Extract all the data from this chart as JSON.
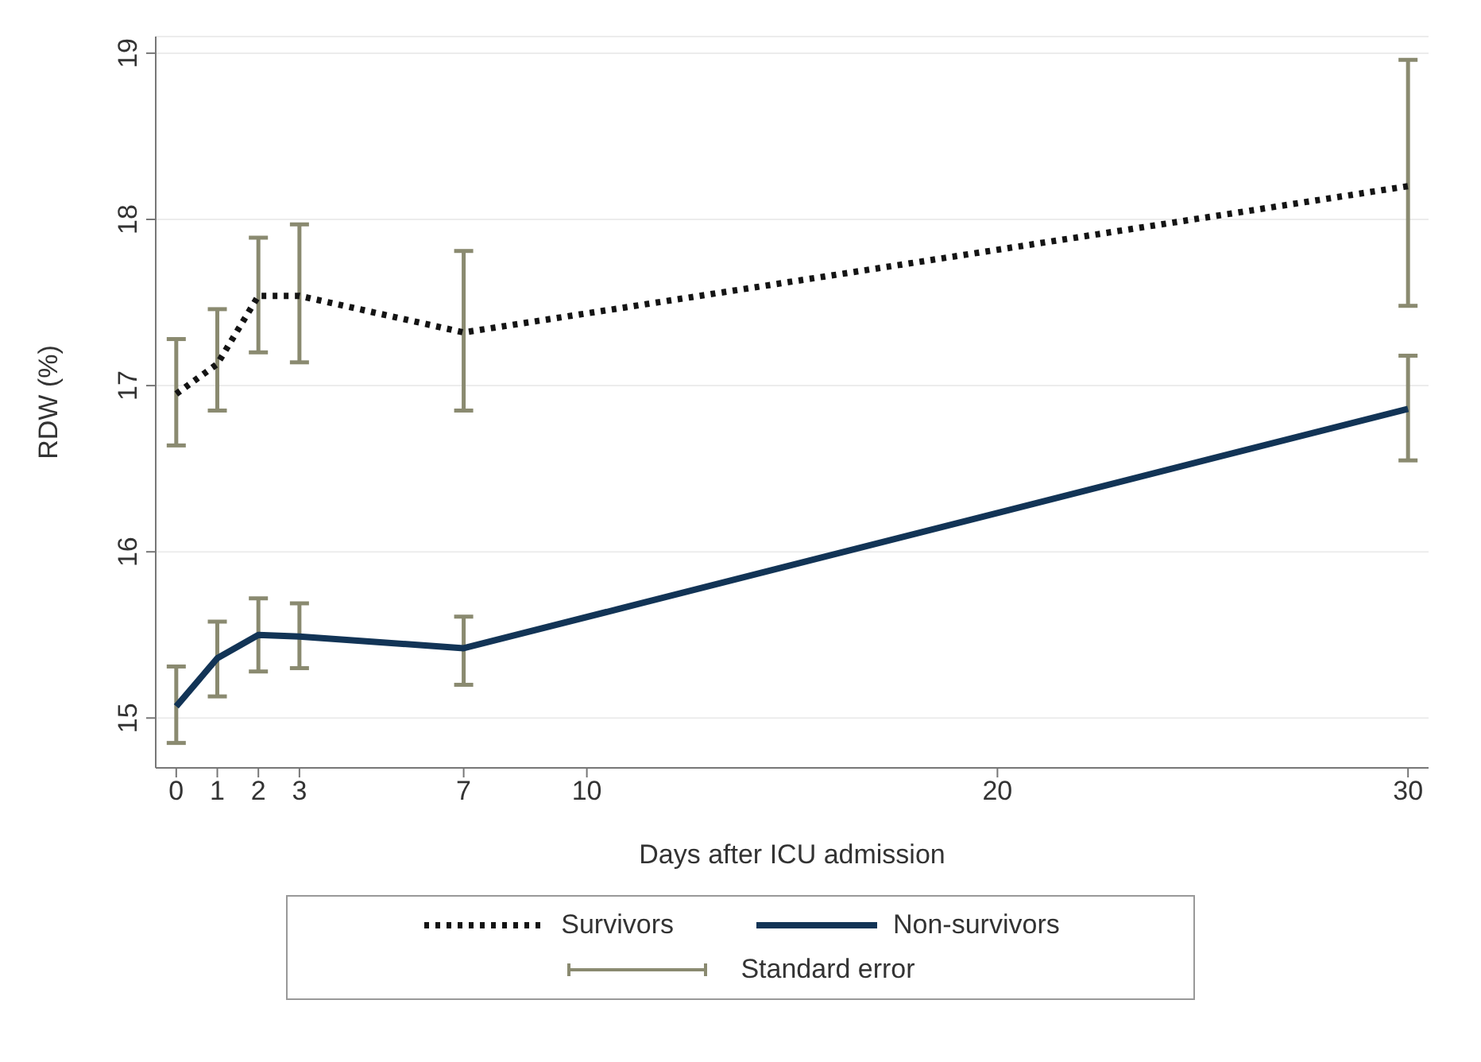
{
  "chart_data": {
    "type": "line",
    "xlabel": "Days after ICU admission",
    "ylabel": "RDW (%)",
    "x": [
      0,
      1,
      2,
      3,
      7,
      30
    ],
    "series": [
      {
        "name": "Survivors",
        "color": "#141414",
        "line_style": "dotted",
        "values": [
          16.95,
          17.13,
          17.54,
          17.54,
          17.32,
          18.2
        ],
        "errors": [
          [
            16.64,
            17.28
          ],
          [
            16.85,
            17.46
          ],
          [
            17.2,
            17.89
          ],
          [
            17.14,
            17.97
          ],
          [
            16.85,
            17.81
          ],
          [
            17.48,
            18.96
          ]
        ]
      },
      {
        "name": "Non-survivors",
        "color": "#123456",
        "line_style": "solid",
        "values": [
          15.07,
          15.36,
          15.5,
          15.49,
          15.42,
          16.86
        ],
        "errors": [
          [
            14.85,
            15.31
          ],
          [
            15.13,
            15.58
          ],
          [
            15.28,
            15.72
          ],
          [
            15.3,
            15.69
          ],
          [
            15.2,
            15.61
          ],
          [
            16.55,
            17.18
          ]
        ]
      }
    ],
    "xlim": [
      -0.5,
      30.5
    ],
    "xticks": [
      0,
      1,
      2,
      3,
      7,
      10,
      20,
      30
    ],
    "ylim": [
      14.7,
      19.1
    ],
    "yticks": [
      15,
      16,
      17,
      18,
      19
    ],
    "grid": "y",
    "marker": "none",
    "legend": "bottom",
    "annotations": [
      "Standard error"
    ]
  }
}
